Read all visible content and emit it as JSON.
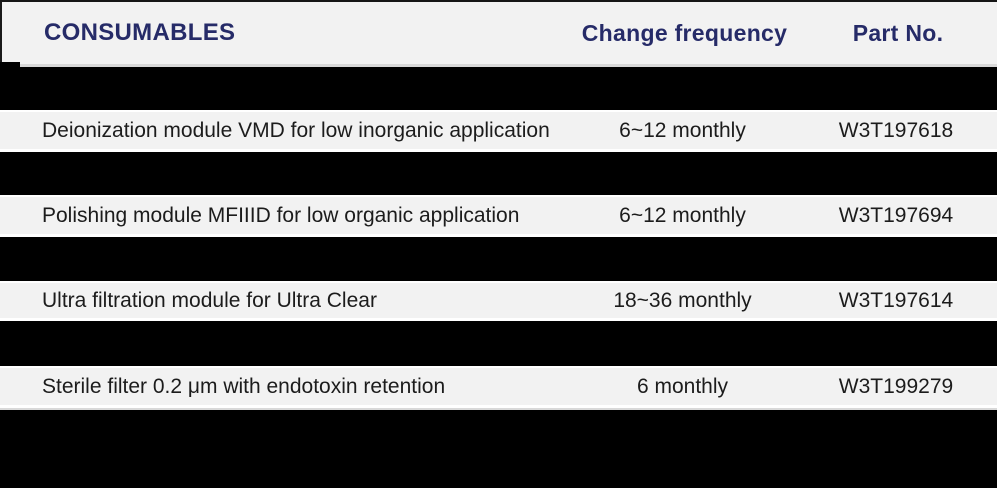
{
  "table": {
    "columns": [
      "CONSUMABLES",
      "Change frequency",
      "Part No."
    ],
    "rows": [
      {
        "consumable": "Deionization module VMD for low inorganic application",
        "frequency": "6~12 monthly",
        "part_no": "W3T197618"
      },
      {
        "consumable": "Polishing module MFIIID for low organic application",
        "frequency": "6~12 monthly",
        "part_no": "W3T197694"
      },
      {
        "consumable": "Ultra filtration module for Ultra Clear",
        "frequency": "18~36 monthly",
        "part_no": "W3T197614"
      },
      {
        "consumable": "Sterile filter 0.2 μm with endotoxin retention",
        "frequency": "6 monthly",
        "part_no": "W3T199279"
      }
    ]
  },
  "colors": {
    "header_text": "#262b68",
    "row_background": "#f2f2f2",
    "band": "#000000",
    "separator": "#d9d9d9",
    "body_text": "#1c1c1c"
  }
}
